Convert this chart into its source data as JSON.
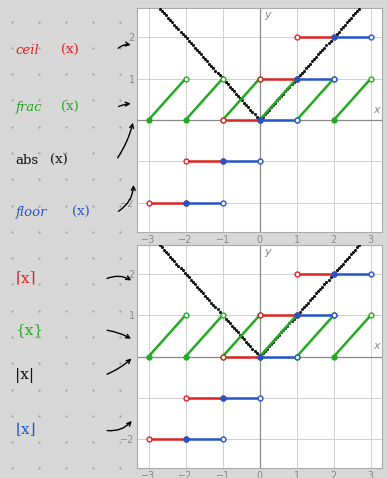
{
  "xlim": [
    -3.3,
    3.3
  ],
  "ylim": [
    -2.7,
    2.7
  ],
  "ceil_color": "#dd2222",
  "frac_color": "#22aa22",
  "abs_color": "#111111",
  "floor_color": "#2255cc",
  "bg_color": "#d8d8d8",
  "panel_bg": "#ffffff",
  "grid_color": "#c8c8c8",
  "axis_color": "#888888",
  "tick_color": "#888888",
  "figsize": [
    3.87,
    4.78
  ],
  "dpi": 100,
  "top_labels": [
    {
      "main": "ceil",
      "sub": "(x)",
      "color": "#dd2222",
      "italic": true,
      "ydata": 1.8
    },
    {
      "main": "frac",
      "sub": "(x)",
      "color": "#22aa22",
      "italic": true,
      "ydata": 0.5
    },
    {
      "main": "abs",
      "sub": "(x)",
      "color": "#111111",
      "italic": false,
      "ydata": 0.0
    },
    {
      "main": "floor",
      "sub": "(x)",
      "color": "#2255cc",
      "italic": true,
      "ydata": -1.5
    }
  ],
  "bot_labels": [
    {
      "main": "⌈x⌉",
      "color": "#dd2222",
      "italic": false,
      "ydata": 1.8
    },
    {
      "main": "{x}",
      "color": "#22aa22",
      "italic": false,
      "ydata": 0.5
    },
    {
      "main": "|x|",
      "color": "#111111",
      "italic": false,
      "ydata": 0.0
    },
    {
      "main": "⌊x⌋",
      "color": "#2255cc",
      "italic": false,
      "ydata": -1.5
    }
  ]
}
